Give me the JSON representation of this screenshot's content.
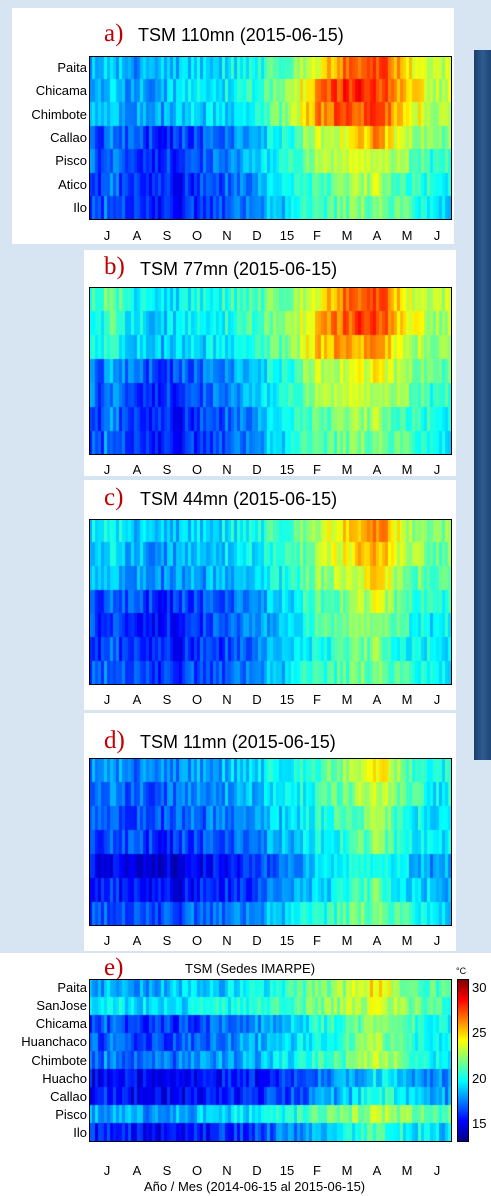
{
  "chart_data": [
    {
      "id": "a",
      "type": "heatmap",
      "panel_label": "a)",
      "title": "TSM 110mn (2015-06-15)",
      "row_labels": [
        "Paita",
        "Chicama",
        "Chimbote",
        "Callao",
        "Pisco",
        "Atico",
        "Ilo"
      ],
      "x_ticks": [
        "J",
        "A",
        "S",
        "O",
        "N",
        "D",
        "15",
        "F",
        "M",
        "A",
        "M",
        "J"
      ],
      "months_grid": [
        [
          19,
          18,
          18.5,
          19,
          19.5,
          20,
          21.5,
          24,
          27,
          28,
          25,
          23
        ],
        [
          19,
          18,
          18.5,
          19.5,
          19.5,
          20.5,
          22,
          26,
          28,
          28,
          25,
          23
        ],
        [
          19,
          18,
          18,
          19,
          19,
          20,
          22,
          26,
          27.5,
          27.5,
          25,
          22.5
        ],
        [
          18,
          16.5,
          16,
          16.5,
          17.5,
          18.5,
          20,
          23,
          24,
          26,
          23,
          21.5
        ],
        [
          18,
          16.5,
          16,
          16.5,
          17.5,
          18.5,
          20,
          22,
          23,
          24,
          22,
          20.5
        ],
        [
          17.5,
          16,
          15.5,
          16,
          17,
          18,
          19.5,
          21,
          22,
          23,
          21,
          20
        ],
        [
          17.5,
          16,
          15.5,
          16,
          17,
          18,
          19,
          20.5,
          21.5,
          22,
          21,
          19.5
        ]
      ]
    },
    {
      "id": "b",
      "type": "heatmap",
      "panel_label": "b)",
      "title": "TSM 77mn (2015-06-15)",
      "row_labels": [],
      "x_ticks": [
        "J",
        "A",
        "S",
        "O",
        "N",
        "D",
        "15",
        "F",
        "M",
        "A",
        "M",
        "J"
      ],
      "months_grid": [
        [
          22,
          20,
          19,
          20,
          20.5,
          21,
          22,
          24,
          27,
          28,
          24,
          23
        ],
        [
          21.5,
          19.5,
          19,
          19.5,
          20,
          21,
          22,
          25,
          27,
          28,
          24,
          22.5
        ],
        [
          21,
          19,
          18.5,
          19,
          19.5,
          20.5,
          21.5,
          25,
          26,
          26,
          23.5,
          22
        ],
        [
          19,
          17,
          16.5,
          17,
          18,
          19,
          20,
          23,
          23.5,
          24,
          22.5,
          21
        ],
        [
          18.5,
          16.5,
          16,
          16.5,
          17.5,
          18.5,
          20,
          22,
          23,
          23.5,
          22,
          20.5
        ],
        [
          18,
          16,
          15.5,
          16,
          17,
          18,
          19.5,
          21.5,
          22,
          22.5,
          21,
          20
        ],
        [
          18,
          16,
          15.5,
          16,
          17,
          18,
          19.5,
          21,
          21.5,
          22,
          21,
          20
        ]
      ]
    },
    {
      "id": "c",
      "type": "heatmap",
      "panel_label": "c)",
      "title": "TSM 44mn (2015-06-15)",
      "row_labels": [],
      "x_ticks": [
        "J",
        "A",
        "S",
        "O",
        "N",
        "D",
        "15",
        "F",
        "M",
        "A",
        "M",
        "J"
      ],
      "months_grid": [
        [
          20,
          19,
          18.5,
          19,
          19.5,
          20,
          21,
          23,
          25,
          27,
          23,
          22
        ],
        [
          19.5,
          18.5,
          18,
          18.5,
          19,
          19.5,
          20.5,
          22.5,
          24,
          26,
          22.5,
          21.5
        ],
        [
          19,
          18,
          17.5,
          18,
          18.5,
          19,
          20,
          22,
          23,
          25,
          22,
          21
        ],
        [
          17.5,
          16.5,
          16,
          16.5,
          17,
          18,
          19,
          21,
          22,
          23.5,
          21,
          20
        ],
        [
          17,
          16,
          15.5,
          16,
          17,
          17.5,
          18.5,
          20.5,
          21.5,
          23,
          20.5,
          19.5
        ],
        [
          17,
          16,
          15.5,
          16,
          16.5,
          17.5,
          18.5,
          20,
          21,
          22,
          20,
          19.5
        ],
        [
          17.5,
          16.5,
          16,
          16.5,
          17,
          18,
          19,
          20.5,
          21,
          22,
          20.5,
          20
        ]
      ]
    },
    {
      "id": "d",
      "type": "heatmap",
      "panel_label": "d)",
      "title": "TSM 11mn (2015-06-15)",
      "row_labels": [],
      "x_ticks": [
        "J",
        "A",
        "S",
        "O",
        "N",
        "D",
        "15",
        "F",
        "M",
        "A",
        "M",
        "J"
      ],
      "months_grid": [
        [
          18,
          17.5,
          17.5,
          18,
          18.5,
          19,
          20,
          21,
          22.5,
          25,
          21.5,
          20
        ],
        [
          17.5,
          17,
          17,
          17.5,
          18,
          18.5,
          19.5,
          20.5,
          21.5,
          23.5,
          21,
          19.5
        ],
        [
          17,
          16.5,
          16.5,
          17,
          17.5,
          18,
          19,
          20,
          21,
          22.5,
          20.5,
          19
        ],
        [
          17,
          16.5,
          16,
          16.5,
          17,
          17.5,
          18.5,
          19.5,
          20.5,
          22,
          20,
          19
        ],
        [
          15.5,
          15,
          14.5,
          15,
          15.5,
          16,
          17,
          18.5,
          19.5,
          21,
          19,
          18
        ],
        [
          16,
          15.5,
          15,
          15.5,
          16,
          16.5,
          17.5,
          19,
          20,
          21.5,
          19.5,
          18.5
        ],
        [
          17,
          16.5,
          16.5,
          17,
          17.5,
          18,
          19,
          20,
          21,
          22,
          20.5,
          19.5
        ]
      ]
    },
    {
      "id": "e",
      "type": "heatmap",
      "panel_label": "e)",
      "title": "TSM (Sedes IMARPE)",
      "row_labels": [
        "Paita",
        "SanJose",
        "Chicama",
        "Huanchaco",
        "Chimbote",
        "Huacho",
        "Callao",
        "Pisco",
        "Ilo"
      ],
      "x_ticks": [
        "J",
        "A",
        "S",
        "O",
        "N",
        "D",
        "15",
        "F",
        "M",
        "A",
        "M",
        "J"
      ],
      "xlabel": "Año / Mes (2014-06-15 al 2015-06-15)",
      "colorbar": {
        "unit": "°C",
        "ticks": [
          15,
          20,
          25,
          30
        ],
        "range": [
          13,
          31
        ]
      },
      "months_grid": [
        [
          19,
          18,
          18.5,
          19,
          19,
          19.5,
          20.5,
          21.5,
          22.5,
          25,
          22,
          21
        ],
        [
          20,
          19,
          19,
          19.5,
          20,
          20.5,
          21,
          22,
          22.5,
          23.5,
          22,
          21
        ],
        [
          17,
          16,
          16,
          16.5,
          17.5,
          18,
          19,
          20,
          21,
          22.5,
          21,
          19.5
        ],
        [
          17.5,
          16.5,
          16.5,
          17,
          17.5,
          18,
          19,
          20,
          21,
          22.5,
          21,
          19.5
        ],
        [
          18,
          17,
          17,
          17.5,
          18,
          18.5,
          19.5,
          20.5,
          21.5,
          23,
          21.5,
          20
        ],
        [
          15.5,
          15,
          15,
          15,
          15.5,
          15.5,
          16,
          17,
          18,
          19.5,
          18.5,
          17.5
        ],
        [
          16,
          15,
          15,
          15,
          15.5,
          16,
          16.5,
          17.5,
          18.5,
          20.5,
          19.5,
          18
        ],
        [
          18.5,
          18,
          18,
          18.5,
          19,
          19.5,
          20,
          21,
          22,
          23,
          22,
          21
        ],
        [
          16,
          15.5,
          15,
          15.5,
          16,
          16.5,
          17.5,
          18.5,
          19.5,
          21,
          20,
          19
        ]
      ]
    }
  ]
}
